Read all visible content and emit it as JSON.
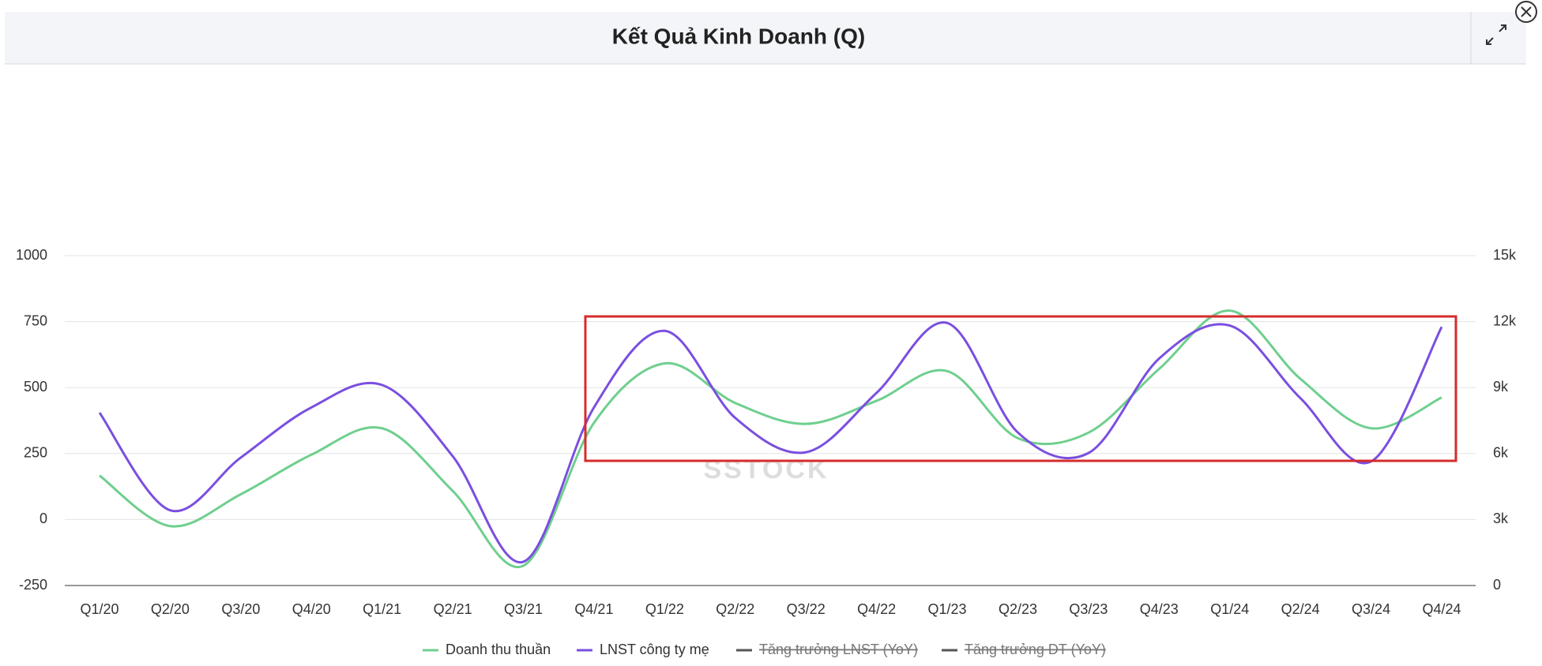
{
  "chart_data": {
    "type": "line",
    "title": "Kết Quả Kinh Doanh (Q)",
    "watermark": "SSTOCK",
    "categories": [
      "Q1/20",
      "Q2/20",
      "Q3/20",
      "Q4/20",
      "Q1/21",
      "Q2/21",
      "Q3/21",
      "Q4/21",
      "Q1/22",
      "Q2/22",
      "Q3/22",
      "Q4/22",
      "Q1/23",
      "Q2/23",
      "Q3/23",
      "Q4/23",
      "Q1/24",
      "Q2/24",
      "Q3/24",
      "Q4/24"
    ],
    "series": [
      {
        "name": "Doanh thu thuần",
        "color": "#6fcf8e",
        "axis": "y2",
        "values": [
          5000,
          2700,
          4150,
          5950,
          7150,
          4300,
          900,
          7400,
          10100,
          8300,
          7350,
          8400,
          9750,
          6700,
          6950,
          9850,
          12500,
          9400,
          7150,
          8550
        ]
      },
      {
        "name": "LNST công ty mẹ",
        "color": "#7a4fe0",
        "axis": "y",
        "values": [
          405,
          35,
          235,
          425,
          510,
          240,
          -160,
          425,
          715,
          385,
          255,
          480,
          745,
          330,
          252,
          610,
          735,
          460,
          220,
          730
        ]
      }
    ],
    "hidden_legend": [
      {
        "name": "Tăng trưởng LNST (YoY)",
        "color": "#555555"
      },
      {
        "name": "Tăng trưởng DT (YoY)",
        "color": "#555555"
      }
    ],
    "ylim": [
      -250,
      1000
    ],
    "yticks": [
      -250,
      0,
      250,
      500,
      750,
      1000
    ],
    "y2lim": [
      0,
      15000
    ],
    "y2ticks": [
      0,
      {
        "value": 3000,
        "label": "3k"
      },
      {
        "value": 6000,
        "label": "6k"
      },
      {
        "value": 9000,
        "label": "9k"
      },
      {
        "value": 12000,
        "label": "12k"
      },
      {
        "value": 15000,
        "label": "15k"
      }
    ],
    "grid": true
  }
}
